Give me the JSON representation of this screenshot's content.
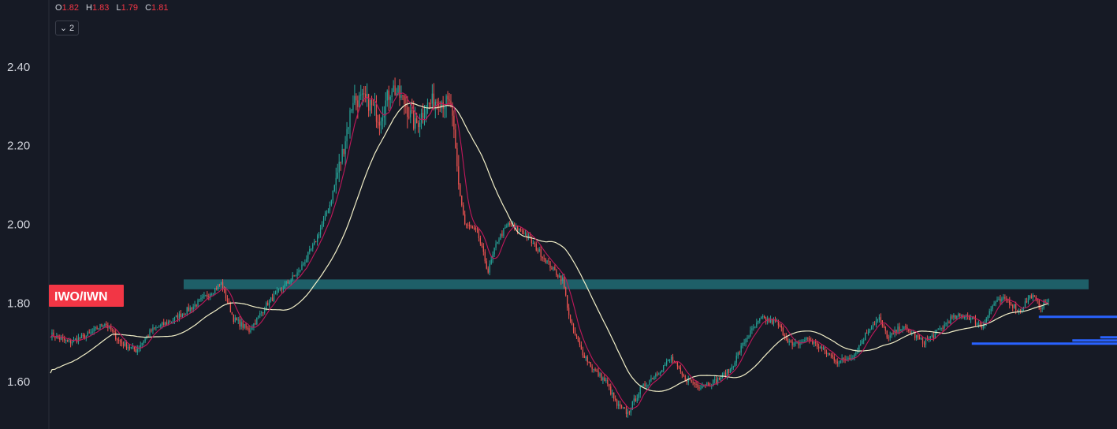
{
  "legend": {
    "open_key": "O",
    "open": "1.82",
    "high_key": "H",
    "high": "1.83",
    "low_key": "L",
    "low": "1.79",
    "close_key": "C",
    "close": "1.81",
    "collapse_count": "2"
  },
  "symbol": "IWO/IWN",
  "colors": {
    "background": "#161a25",
    "up": "#26a69a",
    "down": "#ef5350",
    "ma_fast": "#c2185b",
    "ma_slow": "#f2efc8",
    "zone": "#1e5f68",
    "symbol_label": "#f23645",
    "levels": "#2962ff"
  },
  "chart_data": {
    "type": "candlestick",
    "y_ticks": [
      "2.40",
      "2.20",
      "2.00",
      "1.80",
      "1.60"
    ],
    "y_tick_values": [
      2.4,
      2.2,
      2.0,
      1.8,
      1.6
    ],
    "ylim": [
      1.48,
      2.57
    ],
    "grid": false,
    "moving_averages": [
      "fast (pink)",
      "slow (cream)"
    ],
    "zone": {
      "low": 1.835,
      "high": 1.86
    },
    "close_path": [
      [
        0,
        1.72
      ],
      [
        12,
        1.7
      ],
      [
        25,
        1.72
      ],
      [
        35,
        1.75
      ],
      [
        45,
        1.7
      ],
      [
        55,
        1.68
      ],
      [
        65,
        1.73
      ],
      [
        80,
        1.76
      ],
      [
        95,
        1.8
      ],
      [
        110,
        1.85
      ],
      [
        118,
        1.76
      ],
      [
        128,
        1.73
      ],
      [
        140,
        1.8
      ],
      [
        150,
        1.84
      ],
      [
        160,
        1.88
      ],
      [
        170,
        1.95
      ],
      [
        180,
        2.05
      ],
      [
        188,
        2.18
      ],
      [
        195,
        2.32
      ],
      [
        205,
        2.31
      ],
      [
        212,
        2.27
      ],
      [
        220,
        2.35
      ],
      [
        228,
        2.31
      ],
      [
        235,
        2.25
      ],
      [
        242,
        2.3
      ],
      [
        250,
        2.32
      ],
      [
        258,
        2.3
      ],
      [
        263,
        2.1
      ],
      [
        267,
        2.0
      ],
      [
        275,
        1.98
      ],
      [
        282,
        1.88
      ],
      [
        288,
        1.96
      ],
      [
        295,
        2.0
      ],
      [
        305,
        1.98
      ],
      [
        315,
        1.93
      ],
      [
        325,
        1.88
      ],
      [
        330,
        1.86
      ],
      [
        335,
        1.75
      ],
      [
        342,
        1.68
      ],
      [
        350,
        1.63
      ],
      [
        358,
        1.6
      ],
      [
        365,
        1.54
      ],
      [
        372,
        1.52
      ],
      [
        380,
        1.58
      ],
      [
        390,
        1.62
      ],
      [
        400,
        1.66
      ],
      [
        408,
        1.61
      ],
      [
        418,
        1.59
      ],
      [
        428,
        1.6
      ],
      [
        438,
        1.63
      ],
      [
        448,
        1.71
      ],
      [
        458,
        1.76
      ],
      [
        468,
        1.75
      ],
      [
        478,
        1.69
      ],
      [
        488,
        1.71
      ],
      [
        498,
        1.68
      ],
      [
        508,
        1.65
      ],
      [
        518,
        1.67
      ],
      [
        528,
        1.74
      ],
      [
        534,
        1.76
      ],
      [
        540,
        1.71
      ],
      [
        548,
        1.74
      ],
      [
        556,
        1.72
      ],
      [
        562,
        1.7
      ],
      [
        570,
        1.72
      ],
      [
        580,
        1.76
      ],
      [
        590,
        1.77
      ],
      [
        600,
        1.74
      ],
      [
        608,
        1.8
      ],
      [
        616,
        1.81
      ],
      [
        624,
        1.78
      ],
      [
        632,
        1.82
      ],
      [
        638,
        1.79
      ],
      [
        643,
        1.81
      ]
    ],
    "extra_levels": [
      {
        "value": 1.765,
        "from": 0.93
      },
      {
        "value": 1.713,
        "from": 0.985
      },
      {
        "value": 1.705,
        "from": 0.96
      },
      {
        "value": 1.697,
        "from": 0.87
      }
    ]
  }
}
